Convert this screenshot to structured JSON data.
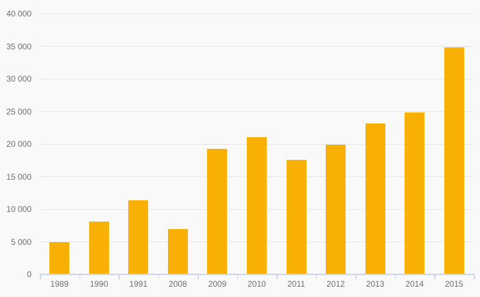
{
  "chart_data": {
    "type": "bar",
    "title": "",
    "xlabel": "",
    "ylabel": "",
    "categories": [
      "1989",
      "1990",
      "1991",
      "2008",
      "2009",
      "2010",
      "2011",
      "2012",
      "2013",
      "2014",
      "2015"
    ],
    "values": [
      5000,
      8100,
      11400,
      7000,
      19300,
      21100,
      17600,
      19900,
      23200,
      24800,
      34800
    ],
    "ylim": [
      0,
      40000
    ],
    "y_tick_step": 5000,
    "y_tick_labels": [
      "0",
      "5 000",
      "10 000",
      "15 000",
      "20 000",
      "25 000",
      "30 000",
      "35 000",
      "40 000"
    ],
    "grid": true,
    "legend": false
  },
  "style": {
    "bar_color": "#f9b005",
    "background_color": "#f9f9f9",
    "gridline_color": "#e7e7e7",
    "axis_color": "#ccd8ea",
    "label_color": "#6e6e6e"
  }
}
